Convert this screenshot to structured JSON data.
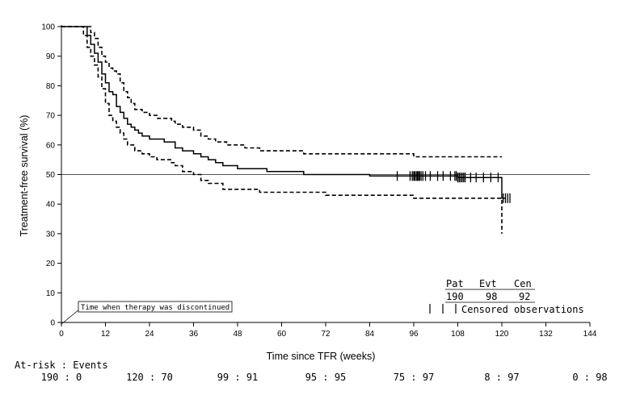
{
  "chart_data": {
    "type": "line",
    "xlabel": "Time since TFR (weeks)",
    "ylabel": "Treatment-free survival (%)",
    "xlim": [
      0,
      144
    ],
    "ylim": [
      0,
      100
    ],
    "xticks": [
      0,
      12,
      24,
      36,
      48,
      60,
      72,
      84,
      96,
      108,
      120,
      132,
      144
    ],
    "yticks": [
      0,
      10,
      20,
      30,
      40,
      50,
      60,
      70,
      80,
      90,
      100
    ],
    "reference_line_y": 50,
    "series": [
      {
        "style": "solid",
        "points": [
          [
            0,
            100
          ],
          [
            6,
            100
          ],
          [
            7,
            97
          ],
          [
            8,
            94
          ],
          [
            9,
            91
          ],
          [
            10,
            88
          ],
          [
            11,
            84
          ],
          [
            12,
            81
          ],
          [
            13,
            78
          ],
          [
            14,
            77
          ],
          [
            15,
            73
          ],
          [
            16,
            71
          ],
          [
            17,
            69
          ],
          [
            18,
            67
          ],
          [
            19,
            66
          ],
          [
            20,
            65
          ],
          [
            21,
            64
          ],
          [
            22,
            63
          ],
          [
            24,
            62
          ],
          [
            26,
            62
          ],
          [
            28,
            61
          ],
          [
            30,
            61
          ],
          [
            31,
            59
          ],
          [
            33,
            58
          ],
          [
            36,
            57
          ],
          [
            38,
            56
          ],
          [
            40,
            55
          ],
          [
            42,
            54
          ],
          [
            44,
            53
          ],
          [
            48,
            52
          ],
          [
            52,
            52
          ],
          [
            56,
            51
          ],
          [
            60,
            51
          ],
          [
            66,
            50
          ],
          [
            72,
            50
          ],
          [
            78,
            50
          ],
          [
            84,
            49.5
          ],
          [
            96,
            49.5
          ],
          [
            108,
            49
          ],
          [
            120,
            49
          ],
          [
            120,
            42
          ],
          [
            121,
            42
          ]
        ]
      },
      {
        "style": "dashed",
        "points": [
          [
            0,
            100
          ],
          [
            7,
            100
          ],
          [
            8,
            98
          ],
          [
            9,
            96
          ],
          [
            10,
            93
          ],
          [
            11,
            90
          ],
          [
            12,
            88
          ],
          [
            13,
            86
          ],
          [
            14,
            85
          ],
          [
            15,
            84
          ],
          [
            16,
            81
          ],
          [
            17,
            78
          ],
          [
            18,
            76
          ],
          [
            19,
            74
          ],
          [
            20,
            72
          ],
          [
            22,
            71
          ],
          [
            24,
            70
          ],
          [
            26,
            69
          ],
          [
            28,
            69
          ],
          [
            30,
            68
          ],
          [
            31,
            67
          ],
          [
            33,
            66
          ],
          [
            36,
            65
          ],
          [
            38,
            63
          ],
          [
            40,
            62
          ],
          [
            42,
            61
          ],
          [
            45,
            60
          ],
          [
            50,
            59
          ],
          [
            54,
            58
          ],
          [
            60,
            58
          ],
          [
            66,
            57
          ],
          [
            72,
            57
          ],
          [
            78,
            57
          ],
          [
            84,
            57
          ],
          [
            96,
            56
          ],
          [
            108,
            56
          ],
          [
            120,
            56
          ]
        ]
      },
      {
        "style": "dashed",
        "points": [
          [
            0,
            100
          ],
          [
            5,
            100
          ],
          [
            6,
            97
          ],
          [
            7,
            93
          ],
          [
            8,
            90
          ],
          [
            9,
            87
          ],
          [
            10,
            83
          ],
          [
            11,
            79
          ],
          [
            12,
            74
          ],
          [
            13,
            70
          ],
          [
            14,
            68
          ],
          [
            15,
            66
          ],
          [
            16,
            64
          ],
          [
            17,
            62
          ],
          [
            18,
            60
          ],
          [
            20,
            58
          ],
          [
            22,
            57
          ],
          [
            24,
            56
          ],
          [
            26,
            55
          ],
          [
            28,
            55
          ],
          [
            30,
            54
          ],
          [
            31,
            53
          ],
          [
            33,
            51
          ],
          [
            36,
            50
          ],
          [
            38,
            48
          ],
          [
            40,
            47
          ],
          [
            44,
            45
          ],
          [
            48,
            45
          ],
          [
            54,
            44
          ],
          [
            60,
            44
          ],
          [
            66,
            44
          ],
          [
            72,
            43
          ],
          [
            84,
            43
          ],
          [
            96,
            42
          ],
          [
            108,
            42
          ],
          [
            120,
            42
          ],
          [
            120,
            30
          ]
        ]
      }
    ],
    "censored_times": [
      91.5,
      95,
      95.6,
      96,
      96.3,
      96.7,
      97,
      97.3,
      97.6,
      98,
      98.5,
      99.2,
      100.5,
      102.5,
      104,
      106,
      107.2,
      107.6,
      108,
      108.4,
      108.8,
      109.2,
      109.6,
      110,
      111.5,
      113,
      115,
      117,
      119
    ],
    "censored_tail_times": [
      120.4,
      121,
      121.6,
      122.2
    ],
    "censored_tail_y": 42
  },
  "annotation": {
    "text": "Time when therapy was discontinued"
  },
  "summary_table": {
    "headers": [
      "Pat",
      "Evt",
      "Cen"
    ],
    "values": [
      "190",
      "98",
      "92"
    ],
    "legend": "Censored observations"
  },
  "at_risk": {
    "label": "At-risk : Events",
    "values": [
      "190 : 0",
      "120 : 70",
      "99 : 91",
      "95 : 95",
      "75 : 97",
      "8 : 97",
      "0 : 98"
    ]
  }
}
